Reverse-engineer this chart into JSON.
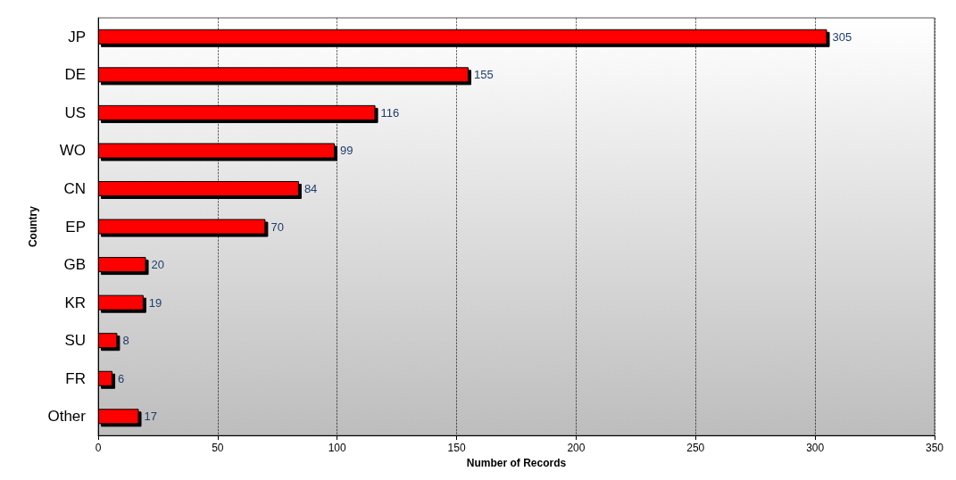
{
  "chart_data": {
    "type": "bar",
    "orientation": "horizontal",
    "xlabel": "Number of Records",
    "ylabel": "Country",
    "categories": [
      "JP",
      "DE",
      "US",
      "WO",
      "CN",
      "EP",
      "GB",
      "KR",
      "SU",
      "FR",
      "Other"
    ],
    "values": [
      305,
      155,
      116,
      99,
      84,
      70,
      20,
      19,
      8,
      6,
      17
    ],
    "color": "#ff0000",
    "data_labels": true,
    "xlim": [
      0,
      350
    ],
    "xticks": [
      0,
      50,
      100,
      150,
      200,
      250,
      300,
      350
    ],
    "grid": "x"
  }
}
